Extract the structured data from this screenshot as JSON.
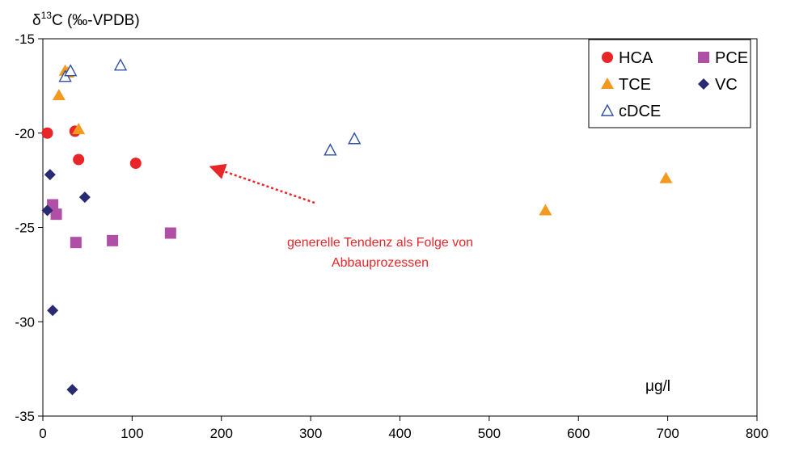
{
  "colors": {
    "HCA": "#e8262a",
    "PCE": "#b04fa6",
    "TCE": "#f39a1e",
    "VC": "#2a2a72",
    "cDCE": "#2f4fa3",
    "arrow": "#e8262a"
  },
  "chart_data": {
    "type": "scatter",
    "title": "",
    "ylabel_parts": [
      "δ",
      "13",
      "C (‰-VPDB)"
    ],
    "xlabel_parts": [
      "μ",
      "g/l"
    ],
    "xlim": [
      0,
      800
    ],
    "ylim": [
      -35,
      -15
    ],
    "x_ticks": [
      0,
      100,
      200,
      300,
      400,
      500,
      600,
      700,
      800
    ],
    "y_ticks": [
      -15,
      -20,
      -25,
      -30,
      -35
    ],
    "x_tick_labels": [
      "0",
      "100",
      "200",
      "300",
      "400",
      "500",
      "600",
      "700",
      "800"
    ],
    "y_tick_labels": [
      "-15",
      "-20",
      "-25",
      "-30",
      "-35"
    ],
    "grid": false,
    "legend_position": "top-right",
    "series": [
      {
        "name": "HCA",
        "marker": "circle",
        "points": [
          [
            5,
            -20.0
          ],
          [
            36,
            -19.9
          ],
          [
            40,
            -21.4
          ],
          [
            104,
            -21.6
          ]
        ]
      },
      {
        "name": "PCE",
        "marker": "square",
        "points": [
          [
            11,
            -23.8
          ],
          [
            15,
            -24.3
          ],
          [
            37,
            -25.8
          ],
          [
            78,
            -25.7
          ],
          [
            143,
            -25.3
          ]
        ]
      },
      {
        "name": "TCE",
        "marker": "triangle",
        "points": [
          [
            25,
            -16.7
          ],
          [
            28,
            -16.8
          ],
          [
            18,
            -18.0
          ],
          [
            40,
            -19.8
          ],
          [
            563,
            -24.1
          ],
          [
            698,
            -22.4
          ]
        ]
      },
      {
        "name": "VC",
        "marker": "diamond",
        "points": [
          [
            5,
            -24.1
          ],
          [
            8,
            -22.2
          ],
          [
            47,
            -23.4
          ],
          [
            11,
            -29.4
          ],
          [
            33,
            -33.6
          ]
        ]
      },
      {
        "name": "cDCE",
        "marker": "triangle-open",
        "points": [
          [
            25,
            -17.0
          ],
          [
            31,
            -16.7
          ],
          [
            87,
            -16.4
          ],
          [
            322,
            -20.9
          ],
          [
            349,
            -20.3
          ]
        ]
      }
    ],
    "annotations": [
      {
        "lines": [
          "generelle Tendenz als Folge von",
          "Abbauprozessen"
        ]
      }
    ]
  }
}
